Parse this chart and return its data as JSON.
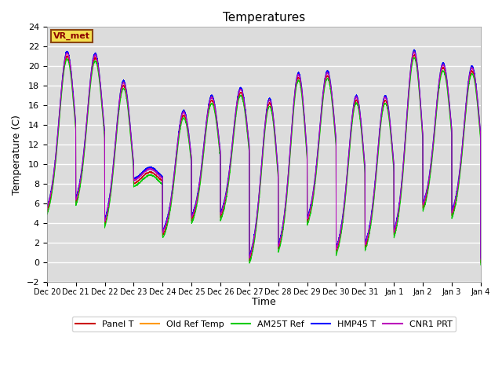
{
  "title": "Temperatures",
  "xlabel": "Time",
  "ylabel": "Temperature (C)",
  "ylim": [
    -2,
    24
  ],
  "yticks": [
    -2,
    0,
    2,
    4,
    6,
    8,
    10,
    12,
    14,
    16,
    18,
    20,
    22,
    24
  ],
  "annotation_text": "VR_met",
  "background_color": "#dcdcdc",
  "figure_background": "#ffffff",
  "grid_color": "#ffffff",
  "legend_entries": [
    {
      "label": "Panel T",
      "color": "#cc0000"
    },
    {
      "label": "Old Ref Temp",
      "color": "#ff9900"
    },
    {
      "label": "AM25T Ref",
      "color": "#00cc00"
    },
    {
      "label": "HMP45 T",
      "color": "#0000ff"
    },
    {
      "label": "CNR1 PRT",
      "color": "#bb00bb"
    }
  ],
  "x_tick_labels": [
    "Dec 20",
    "Dec 21",
    "Dec 22",
    "Dec 23",
    "Dec 24",
    "Dec 25",
    "Dec 26",
    "Dec 27",
    "Dec 28",
    "Dec 29",
    "Dec 30",
    "Dec 31",
    "Jan 1",
    "Jan 2",
    "Jan 3",
    "Jan 4"
  ],
  "n_days": 15,
  "n_pts": 4320,
  "day_peaks": [
    21.0,
    20.8,
    18.0,
    9.2,
    15.0,
    16.5,
    17.3,
    16.2,
    18.8,
    19.0,
    16.5,
    16.5,
    21.1,
    19.8,
    19.5
  ],
  "day_mins": [
    3.8,
    4.5,
    2.2,
    7.8,
    1.9,
    3.2,
    3.5,
    -1.2,
    -0.2,
    2.8,
    -0.3,
    0.2,
    1.2,
    4.3,
    3.5
  ],
  "peak_time": [
    0.55,
    0.52,
    0.5,
    0.42,
    0.58,
    0.55,
    0.55,
    0.55,
    0.55,
    0.55,
    0.55,
    0.55,
    0.55,
    0.55,
    0.55
  ],
  "rise_sharpness": 6,
  "sensor_offsets": {
    "panel": 0.0,
    "oldref": 0.4,
    "am25t": -0.3,
    "hmp45": 0.5,
    "cnr1": 0.3
  }
}
